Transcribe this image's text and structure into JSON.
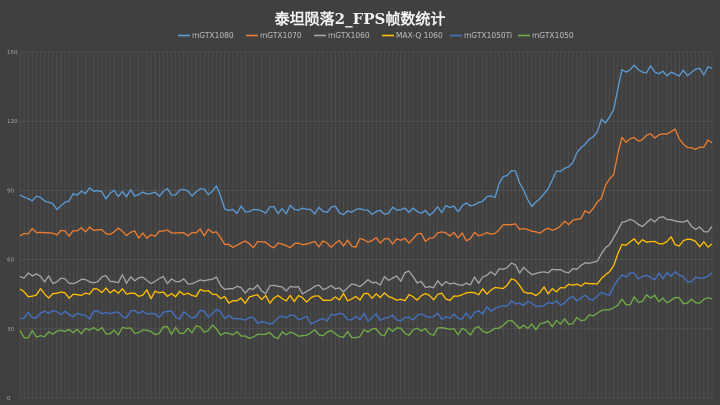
{
  "watermark": "",
  "colors": {
    "background": "#404040",
    "gridline": "#595959",
    "mGTX1080": "#5b9bd5",
    "mGTX1070": "#ed7d31",
    "mGTX1060": "#a5a5a5",
    "MAX-Q 1060": "#ffc000",
    "mGTX1050Ti": "#4472c4",
    "mGTX1050": "#70ad47"
  },
  "chart_data": {
    "type": "line",
    "title": "泰坦陨落2_FPS帧数统计",
    "legend_position": "top",
    "grid": true,
    "ylim": [
      0,
      150
    ],
    "yticks": [
      0,
      30,
      60,
      90,
      120,
      150
    ],
    "x_count": 170,
    "series": [
      {
        "name": "mGTX1080",
        "color": "#5b9bd5",
        "keyframes": [
          [
            0,
            87
          ],
          [
            5,
            86
          ],
          [
            10,
            83
          ],
          [
            15,
            90
          ],
          [
            20,
            88
          ],
          [
            30,
            89
          ],
          [
            40,
            89
          ],
          [
            48,
            90
          ],
          [
            50,
            82
          ],
          [
            60,
            81
          ],
          [
            70,
            82
          ],
          [
            80,
            81
          ],
          [
            90,
            81
          ],
          [
            100,
            81
          ],
          [
            110,
            83
          ],
          [
            115,
            86
          ],
          [
            120,
            100
          ],
          [
            125,
            82
          ],
          [
            130,
            95
          ],
          [
            135,
            104
          ],
          [
            140,
            115
          ],
          [
            145,
            125
          ],
          [
            147,
            143
          ],
          [
            155,
            142
          ],
          [
            160,
            141
          ],
          [
            165,
            141
          ],
          [
            169,
            142
          ]
        ]
      },
      {
        "name": "mGTX1070",
        "color": "#ed7d31",
        "keyframes": [
          [
            0,
            72
          ],
          [
            10,
            71
          ],
          [
            20,
            73
          ],
          [
            30,
            71
          ],
          [
            40,
            72
          ],
          [
            48,
            71
          ],
          [
            50,
            67
          ],
          [
            60,
            66
          ],
          [
            70,
            66
          ],
          [
            80,
            67
          ],
          [
            90,
            68
          ],
          [
            100,
            70
          ],
          [
            110,
            70
          ],
          [
            120,
            75
          ],
          [
            125,
            72
          ],
          [
            135,
            77
          ],
          [
            140,
            82
          ],
          [
            145,
            98
          ],
          [
            147,
            112
          ],
          [
            155,
            113
          ],
          [
            160,
            115
          ],
          [
            164,
            107
          ],
          [
            169,
            112
          ]
        ]
      },
      {
        "name": "mGTX1060",
        "color": "#a5a5a5",
        "keyframes": [
          [
            0,
            53
          ],
          [
            10,
            51
          ],
          [
            20,
            52
          ],
          [
            30,
            51
          ],
          [
            40,
            51
          ],
          [
            48,
            52
          ],
          [
            50,
            47
          ],
          [
            60,
            47
          ],
          [
            70,
            47
          ],
          [
            80,
            48
          ],
          [
            95,
            53
          ],
          [
            100,
            49
          ],
          [
            110,
            50
          ],
          [
            120,
            58
          ],
          [
            125,
            53
          ],
          [
            135,
            55
          ],
          [
            140,
            58
          ],
          [
            145,
            68
          ],
          [
            147,
            75
          ],
          [
            155,
            77
          ],
          [
            160,
            78
          ],
          [
            164,
            74
          ],
          [
            169,
            73
          ]
        ]
      },
      {
        "name": "MAX-Q 1060",
        "color": "#ffc000",
        "keyframes": [
          [
            0,
            46
          ],
          [
            10,
            45
          ],
          [
            20,
            46
          ],
          [
            30,
            45
          ],
          [
            40,
            45
          ],
          [
            48,
            46
          ],
          [
            50,
            43
          ],
          [
            60,
            43
          ],
          [
            70,
            43
          ],
          [
            80,
            44
          ],
          [
            100,
            44
          ],
          [
            110,
            44
          ],
          [
            120,
            50
          ],
          [
            125,
            46
          ],
          [
            135,
            48
          ],
          [
            140,
            50
          ],
          [
            145,
            56
          ],
          [
            147,
            67
          ],
          [
            155,
            68
          ],
          [
            160,
            68
          ],
          [
            164,
            67
          ],
          [
            169,
            66
          ]
        ]
      },
      {
        "name": "mGTX1050Ti",
        "color": "#4472c4",
        "keyframes": [
          [
            0,
            36
          ],
          [
            10,
            36
          ],
          [
            20,
            36
          ],
          [
            30,
            36
          ],
          [
            40,
            36
          ],
          [
            48,
            37
          ],
          [
            50,
            35
          ],
          [
            60,
            34
          ],
          [
            70,
            34
          ],
          [
            80,
            35
          ],
          [
            100,
            35
          ],
          [
            110,
            36
          ],
          [
            120,
            42
          ],
          [
            125,
            40
          ],
          [
            135,
            43
          ],
          [
            140,
            44
          ],
          [
            145,
            47
          ],
          [
            147,
            52
          ],
          [
            155,
            53
          ],
          [
            160,
            53
          ],
          [
            164,
            52
          ],
          [
            169,
            53
          ]
        ]
      },
      {
        "name": "mGTX1050",
        "color": "#70ad47",
        "keyframes": [
          [
            0,
            28
          ],
          [
            10,
            28
          ],
          [
            20,
            29
          ],
          [
            30,
            29
          ],
          [
            40,
            29
          ],
          [
            48,
            30
          ],
          [
            50,
            27
          ],
          [
            60,
            27
          ],
          [
            70,
            28
          ],
          [
            80,
            28
          ],
          [
            100,
            29
          ],
          [
            110,
            29
          ],
          [
            120,
            32
          ],
          [
            125,
            31
          ],
          [
            135,
            34
          ],
          [
            140,
            36
          ],
          [
            145,
            38
          ],
          [
            147,
            42
          ],
          [
            155,
            43
          ],
          [
            160,
            43
          ],
          [
            164,
            42
          ],
          [
            169,
            42
          ]
        ]
      }
    ]
  }
}
